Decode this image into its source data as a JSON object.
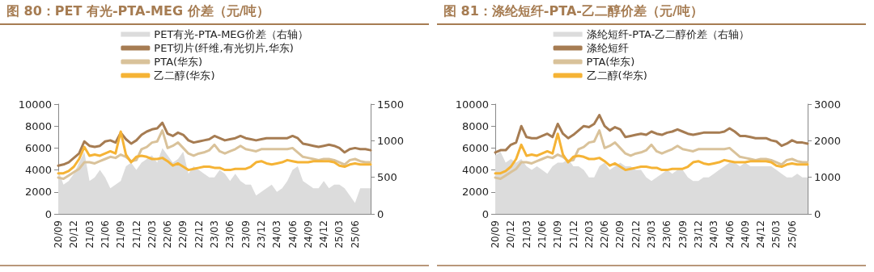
{
  "chart_data": [
    {
      "type": "line",
      "title": "图 80：PET 有光-PTA-MEG 价差（元/吨）",
      "legend": "top",
      "marker": "none",
      "categories": [
        "20/09",
        null,
        null,
        "20/12",
        null,
        null,
        "21/03",
        null,
        null,
        "21/06",
        null,
        null,
        "21/09",
        null,
        null,
        "21/12",
        null,
        null,
        "22/03",
        null,
        null,
        "22/06",
        null,
        null,
        "22/09",
        null,
        null,
        "22/12",
        null,
        null,
        "23/03",
        null,
        null,
        "23/06",
        null,
        null,
        "23/09",
        null,
        null,
        "23/12",
        null,
        null,
        "24/03",
        null,
        null,
        "24/06",
        null,
        null,
        "24/09",
        null,
        null,
        "24/12",
        null,
        null,
        "25/03",
        null,
        null,
        "25/06",
        null,
        null,
        null
      ],
      "ylim": [
        0,
        10000
      ],
      "yticks": [
        0,
        2000,
        4000,
        6000,
        8000,
        10000
      ],
      "y2lim": [
        0,
        1500
      ],
      "y2ticks": [
        0,
        500,
        1000,
        1500
      ],
      "series": [
        {
          "name": "PET有光-PTA-MEG价差（右轴）",
          "type": "area",
          "axis": "y2",
          "color": "#dcdcdc",
          "values": [
            600,
            400,
            450,
            550,
            700,
            850,
            450,
            500,
            600,
            500,
            350,
            400,
            450,
            650,
            700,
            600,
            700,
            750,
            800,
            700,
            900,
            800,
            700,
            750,
            850,
            550,
            650,
            600,
            550,
            500,
            500,
            600,
            550,
            450,
            550,
            450,
            400,
            400,
            250,
            300,
            350,
            400,
            300,
            350,
            450,
            600,
            650,
            450,
            400,
            350,
            350,
            450,
            350,
            400,
            400,
            350,
            250,
            150,
            350,
            350,
            350
          ]
        },
        {
          "name": "PET切片(纤维,有光切片,华东)",
          "color": "#a67c52",
          "values": [
            4400,
            4500,
            4700,
            5100,
            5500,
            6600,
            6200,
            6100,
            6200,
            6600,
            6700,
            6500,
            7400,
            6800,
            6400,
            6700,
            7200,
            7500,
            7700,
            7800,
            8300,
            7300,
            7100,
            7400,
            7200,
            6700,
            6500,
            6600,
            6700,
            6800,
            7100,
            6900,
            6700,
            6800,
            6900,
            7100,
            6900,
            6800,
            6700,
            6800,
            6900,
            6900,
            6900,
            6900,
            6900,
            7100,
            6900,
            6400,
            6300,
            6200,
            6100,
            6200,
            6300,
            6200,
            6000,
            5600,
            5900,
            6000,
            5900,
            5900,
            5800
          ]
        },
        {
          "name": "PTA(华东)",
          "color": "#d9c29a",
          "values": [
            3300,
            3200,
            3500,
            3800,
            4100,
            4700,
            4700,
            4600,
            4800,
            5000,
            5200,
            5100,
            5400,
            5200,
            4800,
            4900,
            5900,
            6100,
            6500,
            6600,
            7600,
            6000,
            6200,
            6500,
            6000,
            5500,
            5300,
            5500,
            5600,
            5800,
            6300,
            5700,
            5500,
            5700,
            5900,
            6200,
            5900,
            5800,
            5700,
            5900,
            5900,
            5900,
            5900,
            5900,
            5900,
            6000,
            5600,
            5200,
            5100,
            5000,
            4900,
            5000,
            5000,
            4900,
            4700,
            4500,
            4900,
            5000,
            4800,
            4700,
            4700
          ]
        },
        {
          "name": "乙二醇(华东)",
          "color": "#f5b335",
          "values": [
            3700,
            3700,
            3900,
            4300,
            5000,
            6100,
            5300,
            5400,
            5300,
            5500,
            5700,
            5500,
            7500,
            5400,
            4700,
            5200,
            5300,
            5200,
            5000,
            5000,
            5100,
            4800,
            4400,
            4600,
            4300,
            4000,
            4100,
            4200,
            4300,
            4300,
            4200,
            4200,
            4000,
            4000,
            4100,
            4100,
            4100,
            4300,
            4700,
            4800,
            4600,
            4500,
            4600,
            4700,
            4900,
            4800,
            4700,
            4700,
            4700,
            4800,
            4800,
            4800,
            4800,
            4700,
            4400,
            4300,
            4500,
            4600,
            4500,
            4500,
            4500
          ]
        }
      ]
    },
    {
      "type": "line",
      "title": "图 81：涤纶短纤-PTA-乙二醇价差（元/吨）",
      "legend": "top",
      "marker": "none",
      "categories": [
        "20/09",
        null,
        null,
        "20/12",
        null,
        null,
        "21/03",
        null,
        null,
        "21/06",
        null,
        null,
        "21/09",
        null,
        null,
        "21/12",
        null,
        null,
        "22/03",
        null,
        null,
        "22/06",
        null,
        null,
        "22/09",
        null,
        null,
        "22/12",
        null,
        null,
        "23/03",
        null,
        null,
        "23/06",
        null,
        null,
        "23/09",
        null,
        null,
        "23/12",
        null,
        null,
        "24/03",
        null,
        null,
        "24/06",
        null,
        null,
        "24/09",
        null,
        null,
        "24/12",
        null,
        null,
        "25/03",
        null,
        null,
        "25/06",
        null,
        null,
        null
      ],
      "ylim": [
        0,
        10000
      ],
      "yticks": [
        0,
        2000,
        4000,
        6000,
        8000,
        10000
      ],
      "y2lim": [
        0,
        3000
      ],
      "y2ticks": [
        0,
        1000,
        2000,
        3000
      ],
      "series": [
        {
          "name": "涤纶短纤-PTA-乙二醇价差（右轴）",
          "type": "area",
          "axis": "y2",
          "color": "#dcdcdc",
          "values": [
            1600,
            1700,
            1400,
            1500,
            1400,
            1500,
            1300,
            1200,
            1300,
            1200,
            1100,
            1300,
            1400,
            1400,
            1500,
            1300,
            1300,
            1200,
            1000,
            1000,
            1300,
            1400,
            1200,
            1300,
            1400,
            1300,
            1300,
            1200,
            1200,
            1000,
            900,
            1000,
            1100,
            1200,
            1100,
            1200,
            1200,
            1000,
            900,
            900,
            1000,
            1000,
            1100,
            1200,
            1300,
            1400,
            1400,
            1300,
            1400,
            1300,
            1300,
            1300,
            1300,
            1300,
            1200,
            1100,
            1000,
            1000,
            1100,
            1000,
            1000
          ]
        },
        {
          "name": "涤纶短纤",
          "color": "#a67c52",
          "values": [
            5600,
            5800,
            5800,
            6300,
            6500,
            8000,
            7000,
            6900,
            6900,
            7100,
            7300,
            7000,
            8200,
            7300,
            6900,
            7200,
            7600,
            8000,
            7900,
            8200,
            9000,
            8000,
            7600,
            7900,
            7700,
            7000,
            7100,
            7200,
            7300,
            7200,
            7500,
            7300,
            7200,
            7400,
            7500,
            7700,
            7500,
            7300,
            7200,
            7300,
            7400,
            7400,
            7400,
            7400,
            7500,
            7800,
            7500,
            7100,
            7100,
            7000,
            6900,
            6900,
            6900,
            6700,
            6600,
            6200,
            6400,
            6700,
            6500,
            6500,
            6400
          ]
        },
        {
          "name": "PTA(华东)",
          "color": "#d9c29a",
          "values": [
            3300,
            3200,
            3500,
            3800,
            4100,
            4700,
            4700,
            4600,
            4800,
            5000,
            5200,
            5100,
            5400,
            5200,
            4800,
            4900,
            5900,
            6100,
            6500,
            6600,
            7600,
            6000,
            6200,
            6500,
            6000,
            5500,
            5300,
            5500,
            5600,
            5800,
            6300,
            5700,
            5500,
            5700,
            5900,
            6200,
            5900,
            5800,
            5700,
            5900,
            5900,
            5900,
            5900,
            5900,
            5900,
            6000,
            5600,
            5200,
            5100,
            5000,
            4900,
            5000,
            5000,
            4900,
            4700,
            4500,
            4900,
            5000,
            4800,
            4700,
            4700
          ]
        },
        {
          "name": "乙二醇(华东)",
          "color": "#f5b335",
          "values": [
            3700,
            3700,
            3900,
            4300,
            5000,
            6300,
            5300,
            5400,
            5300,
            5500,
            5700,
            5500,
            7300,
            5400,
            4700,
            5200,
            5300,
            5200,
            5000,
            5000,
            5100,
            4800,
            4400,
            4600,
            4300,
            4000,
            4100,
            4200,
            4300,
            4300,
            4200,
            4200,
            4000,
            4000,
            4100,
            4100,
            4100,
            4300,
            4700,
            4800,
            4600,
            4500,
            4600,
            4700,
            4900,
            4800,
            4700,
            4700,
            4700,
            4800,
            4800,
            4800,
            4800,
            4700,
            4400,
            4300,
            4500,
            4600,
            4500,
            4500,
            4500
          ]
        }
      ]
    }
  ]
}
